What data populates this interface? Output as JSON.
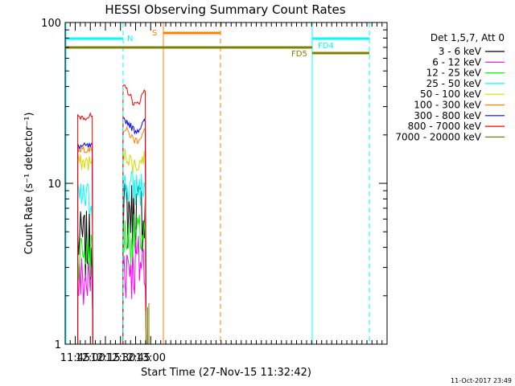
{
  "chart_data": {
    "type": "line",
    "title": "HESSI Observing Summary Count Rates",
    "xlabel": "Start Time (27-Nov-15 11:32:42)",
    "ylabel": "Count Rate (s⁻¹ detector⁻¹)",
    "y_scale": "log",
    "ylim": [
      1,
      100
    ],
    "xlim_minutes": [
      695,
      1015
    ],
    "x_ticks": [
      {
        "label": "11:45",
        "minute": 705
      },
      {
        "label": "12:00",
        "minute": 720
      },
      {
        "label": "12:15",
        "minute": 735
      },
      {
        "label": "12:30",
        "minute": 750
      },
      {
        "label": "12:45",
        "minute": 765
      },
      {
        "label": "13:00",
        "minute": 780
      }
    ],
    "y_ticks": [
      {
        "label": "1",
        "value": 1
      },
      {
        "label": "10",
        "value": 10
      },
      {
        "label": "100",
        "value": 100
      }
    ],
    "legend_title": "Det 1,5,7, Att 0",
    "legend_position": "right",
    "segments": [
      [
        707.5,
        722.5
      ],
      [
        752.5,
        775.5
      ]
    ],
    "series": [
      {
        "name": "3 - 6 keV",
        "color": "#000000",
        "levels": [
          4.5,
          7.0
        ],
        "noise": 0.5
      },
      {
        "name": "6 - 12 keV",
        "color": "#ff00ff",
        "levels": [
          2.5,
          3.3
        ],
        "noise": 0.5
      },
      {
        "name": "12 - 25 keV",
        "color": "#00ff00",
        "levels": [
          3.8,
          4.8
        ],
        "noise": 0.35
      },
      {
        "name": "25 - 50 keV",
        "color": "#00ffff",
        "levels": [
          8.0,
          9.5
        ],
        "noise": 0.3
      },
      {
        "name": "50 - 100 keV",
        "color": "#d8d800",
        "levels": [
          13.5,
          14.0
        ],
        "noise": 0.12
      },
      {
        "name": "100 - 300 keV",
        "color": "#ff8000",
        "levels": [
          16.5,
          20.0
        ],
        "noise": 0.06
      },
      {
        "name": "300 - 800 keV",
        "color": "#0000ff",
        "levels": [
          17.0,
          23.0
        ],
        "noise": 0.05
      },
      {
        "name": "800 - 7000 keV",
        "color": "#ff0000",
        "levels": [
          26.0,
          35.0
        ],
        "noise": 0.05
      },
      {
        "name": "7000 - 20000 keV",
        "color": "#808000",
        "levels": [
          1.0,
          1.0
        ],
        "noise": 0.0
      }
    ],
    "flags": [
      {
        "label": "N",
        "color": "#00ffff"
      },
      {
        "label": "S",
        "color": "#ff8000"
      },
      {
        "label": "FD4",
        "color": "#00ffff"
      },
      {
        "label": "FD5",
        "color": "#808000"
      }
    ]
  },
  "footer": {
    "date_stamp": "11-Oct-2017 23:49"
  }
}
